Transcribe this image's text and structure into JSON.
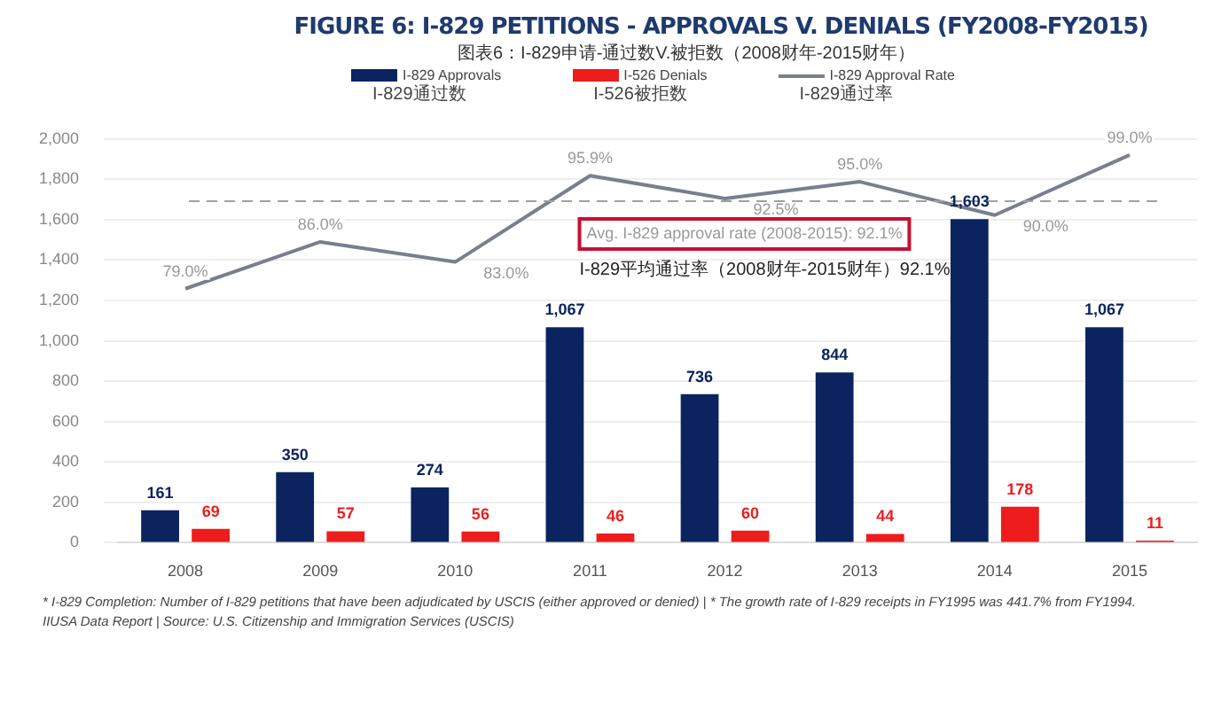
{
  "chart_data": {
    "type": "bar",
    "title": "FIGURE 6: I-829 PETITIONS - APPROVALS V. DENIALS (FY2008-FY2015)",
    "subtitle": "图表6：I-829申请-通过数V.被拒数（2008财年-2015财年）",
    "categories": [
      "2008",
      "2009",
      "2010",
      "2011",
      "2012",
      "2013",
      "2014",
      "2015"
    ],
    "series": [
      {
        "name": "I-829 Approvals\nI-829通过数",
        "color": "#0b2460",
        "values": [
          161,
          350,
          274,
          1067,
          736,
          844,
          1603,
          1067
        ],
        "value_labels": [
          "161",
          "350",
          "274",
          "1,067",
          "736",
          "844",
          "1,603",
          "1,067"
        ]
      },
      {
        "name": "I-526 Denials\nI-526被拒数",
        "color": "#ee1c1c",
        "values": [
          69,
          57,
          56,
          46,
          60,
          44,
          178,
          11
        ],
        "value_labels": [
          "69",
          "57",
          "56",
          "46",
          "60",
          "44",
          "178",
          "11"
        ]
      },
      {
        "name": "I-829 Approval Rate\nI-829通过率",
        "type": "line",
        "axis": "y2",
        "color": "#7a7f8c",
        "values": [
          79.0,
          86.0,
          83.0,
          95.9,
          92.5,
          95.0,
          90.0,
          99.0
        ],
        "value_labels": [
          "79.0%",
          "86.0%",
          "83.0%",
          "95.9%",
          "92.5%",
          "95.0%",
          "90.0%",
          "99.0%"
        ]
      }
    ],
    "ylim": [
      0,
      2000
    ],
    "yticks": [
      0,
      {
        "value": 200,
        "label": "200"
      },
      {
        "value": 400,
        "label": "400"
      },
      {
        "value": 600,
        "label": "600"
      },
      {
        "value": 800,
        "label": "800"
      },
      {
        "value": 1000,
        "label": "1,000"
      },
      {
        "value": 1200,
        "label": "1,200"
      },
      {
        "value": 1400,
        "label": "1,400"
      },
      {
        "value": 1600,
        "label": "1,600"
      },
      {
        "value": 1800,
        "label": "1,800"
      },
      {
        "value": 2000,
        "label": "2,000"
      }
    ],
    "tick_labels": "xy",
    "grid": "y",
    "legend": "top",
    "marker": "none",
    "ref_lines": [
      {
        "axis": "y2",
        "value": 92.1,
        "label": "Avg. I-829 approval rate (2008-2015): 92.1%",
        "color": "#a0a0a0",
        "line_style": "dashed"
      }
    ],
    "annotations": [
      "I-829平均通过率（2008财年-2015财年）92.1%",
      "* I-829 Completion: Number of I-829 petitions that have been adjudicated by USCIS (either approved or denied) | * The growth rate of I-829 receipts in FY1995 was 441.7% from FY1994.",
      "IIUSA Data Report | Source: U.S. Citizenship and Immigration Services (USCIS)"
    ]
  }
}
